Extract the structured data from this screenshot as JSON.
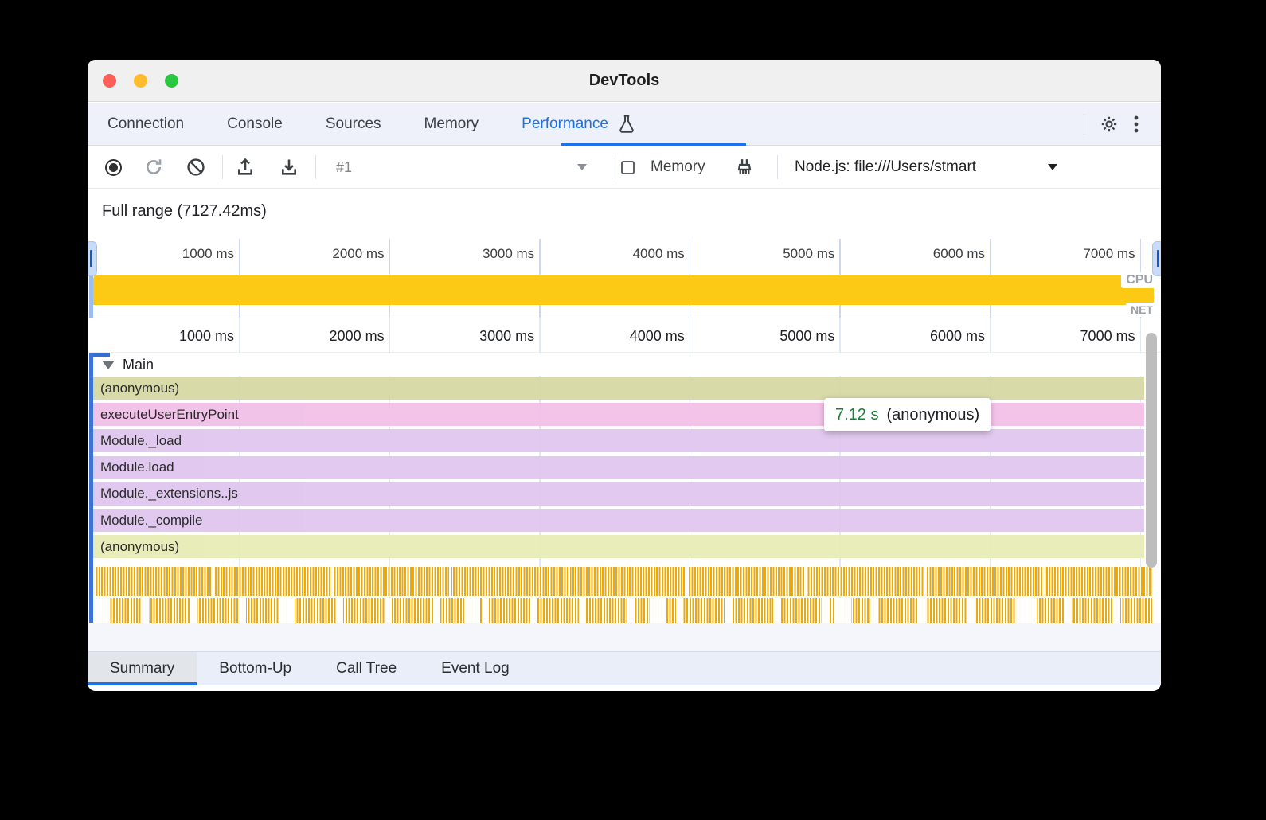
{
  "window": {
    "title": "DevTools"
  },
  "tabs": {
    "items": [
      {
        "label": "Connection"
      },
      {
        "label": "Console"
      },
      {
        "label": "Sources"
      },
      {
        "label": "Memory"
      },
      {
        "label": "Performance"
      }
    ],
    "active": "Performance"
  },
  "toolbar": {
    "capture_label": "#1",
    "memory_label": "Memory",
    "memory_checked": false,
    "target_label": "Node.js: file:///Users/stmart"
  },
  "full_range_label": "Full range (7127.42ms)",
  "timeline": {
    "ticks": [
      "1000 ms",
      "2000 ms",
      "3000 ms",
      "4000 ms",
      "5000 ms",
      "6000 ms",
      "7000 ms"
    ],
    "cpu_label": "CPU",
    "net_label": "NET"
  },
  "flame": {
    "main_label": "Main",
    "rows": [
      {
        "label": "(anonymous)",
        "color": "#d6d9a3"
      },
      {
        "label": "executeUserEntryPoint",
        "color": "#f2c0e7"
      },
      {
        "label": "Module._load",
        "color": "#dfc6ee"
      },
      {
        "label": "Module.load",
        "color": "#dfc6ee"
      },
      {
        "label": "Module._extensions..js",
        "color": "#dfc6ee"
      },
      {
        "label": "Module._compile",
        "color": "#dfc6ee"
      },
      {
        "label": "(anonymous)",
        "color": "#e7ecb5"
      }
    ]
  },
  "tooltip": {
    "duration": "7.12 s",
    "name": "(anonymous)"
  },
  "bottom_tabs": {
    "items": [
      {
        "label": "Summary"
      },
      {
        "label": "Bottom-Up"
      },
      {
        "label": "Call Tree"
      },
      {
        "label": "Event Log"
      }
    ],
    "active": "Summary"
  },
  "colors": {
    "accent": "#1a73e8",
    "cpu_band": "#fcca15",
    "stripe": "#eda90c",
    "duration_green": "#188038"
  }
}
